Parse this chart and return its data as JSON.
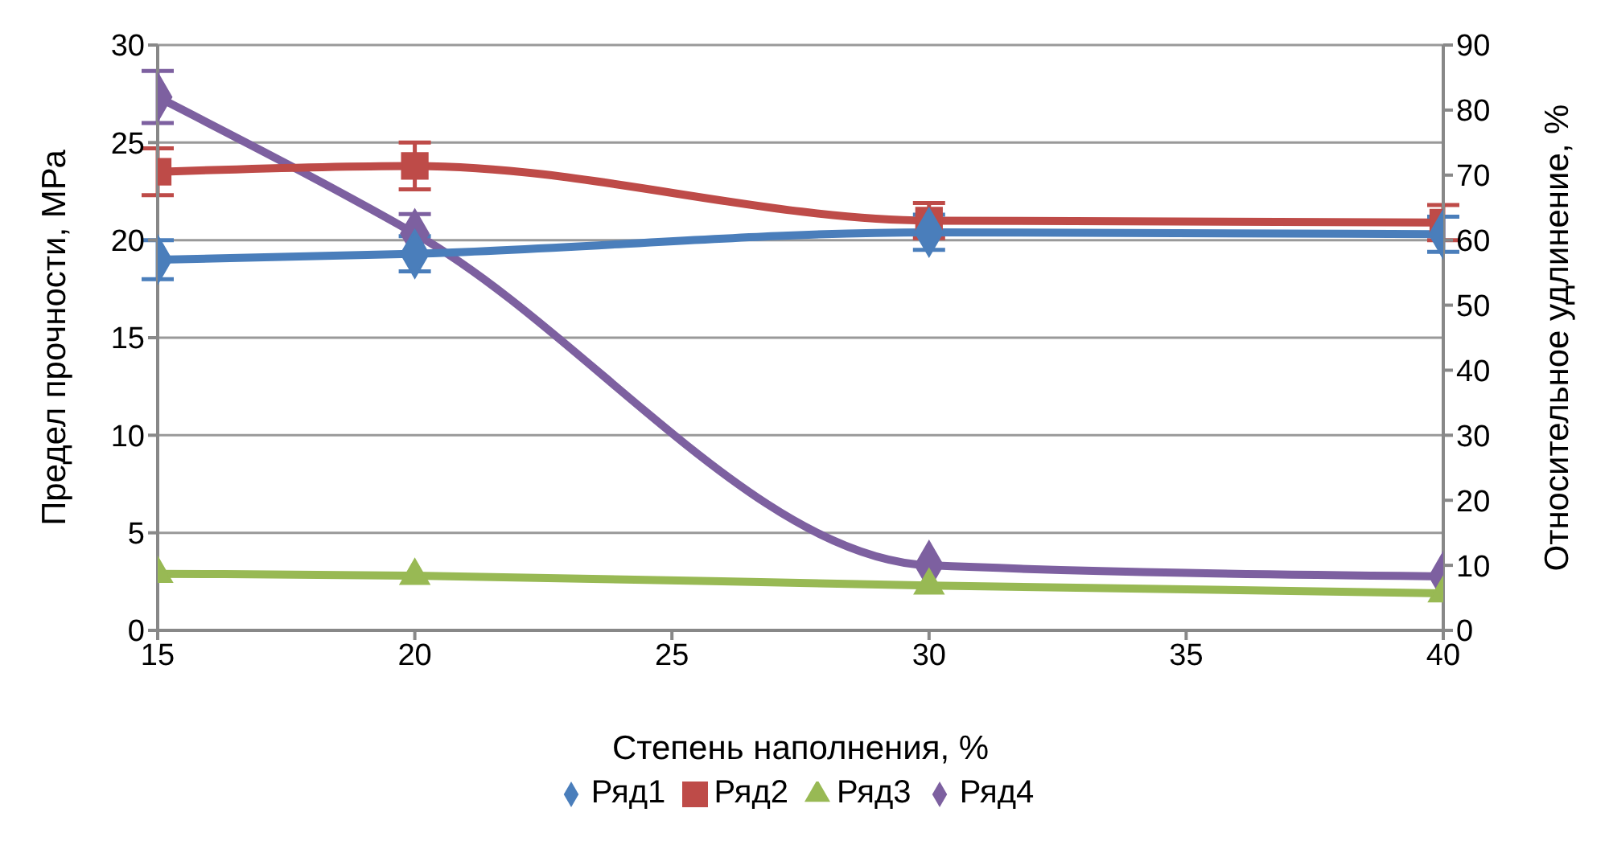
{
  "chart_data": {
    "type": "line",
    "xlabel": "Степень наполнения, %",
    "ylabel": "Предел прочности, МРа",
    "y2label": "Относительное удлинение, %",
    "x": [
      15,
      20,
      30,
      40
    ],
    "series": [
      {
        "name": "Ряд1",
        "color": "#4a7ebb",
        "marker": "diamond",
        "values": [
          19.0,
          19.3,
          20.4,
          20.3
        ],
        "errors": [
          1.0,
          0.9,
          0.9,
          0.9
        ]
      },
      {
        "name": "Ряд2",
        "color": "#be4b48",
        "marker": "square",
        "values": [
          23.5,
          23.8,
          21.0,
          20.9
        ],
        "errors": [
          1.2,
          1.2,
          0.9,
          0.9
        ]
      },
      {
        "name": "Ряд3",
        "color": "#98b954",
        "marker": "triangle",
        "values": [
          2.9,
          2.8,
          2.3,
          1.9
        ]
      },
      {
        "name": "Ряд4",
        "color": "#7d60a0",
        "marker": "diamond",
        "axis": "y2",
        "values": [
          82,
          61,
          10,
          8.3
        ],
        "errors": [
          4,
          3,
          null,
          null
        ]
      }
    ],
    "xlim": [
      15,
      40
    ],
    "xticks": [
      15,
      20,
      25,
      30,
      35,
      40
    ],
    "ylim": [
      0,
      30
    ],
    "yticks": [
      0,
      5,
      10,
      15,
      20,
      25,
      30
    ],
    "y2lim": [
      0,
      90
    ],
    "y2ticks": [
      0,
      10,
      20,
      30,
      40,
      50,
      60,
      70,
      80,
      90
    ],
    "grid": "y",
    "legend": "bottom",
    "line_style": "solid"
  }
}
